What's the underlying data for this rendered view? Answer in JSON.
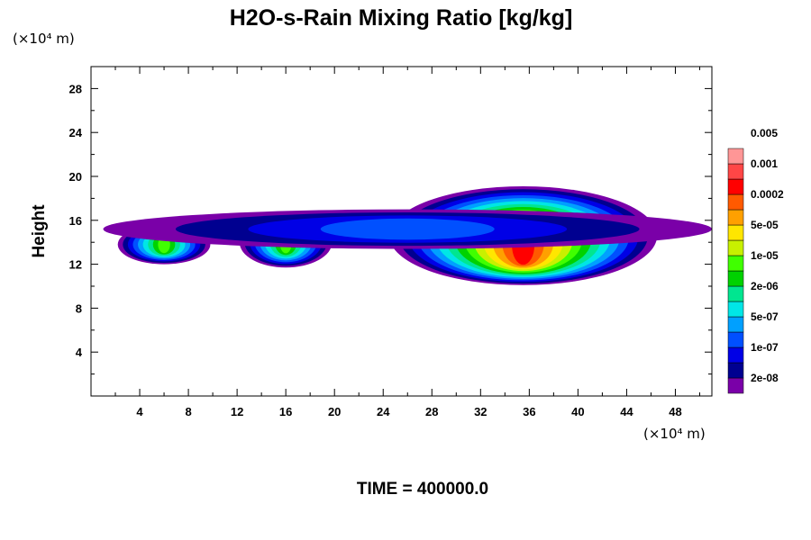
{
  "chart_data": {
    "type": "heatmap",
    "title": "H2O-s-Rain Mixing Ratio [kg/kg]",
    "ylabel": "Height",
    "x_unit": "(×10⁴ m)",
    "y_unit": "(×10⁴ m)",
    "footer": "TIME = 400000.0",
    "xlim": [
      0,
      51
    ],
    "ylim": [
      0,
      30
    ],
    "x_ticks": [
      "4",
      "8",
      "12",
      "16",
      "20",
      "24",
      "28",
      "32",
      "36",
      "40",
      "44",
      "48"
    ],
    "y_ticks": [
      "4",
      "8",
      "12",
      "16",
      "20",
      "24",
      "28"
    ],
    "colorbar": {
      "colors": [
        "#7a00a8",
        "#000090",
        "#0000e6",
        "#0050ff",
        "#00a0ff",
        "#00e6e6",
        "#00e690",
        "#00d200",
        "#40ff00",
        "#c8f000",
        "#ffe600",
        "#ffa000",
        "#ff5a00",
        "#ff0000",
        "#ff4646",
        "#ff9696"
      ],
      "labels": [
        "2e-08",
        "1e-07",
        "5e-07",
        "2e-06",
        "1e-05",
        "5e-05",
        "0.0002",
        "0.001",
        "0.005"
      ],
      "label_every": 2
    },
    "regions": [
      {
        "name": "main-cloud",
        "cx": 35.5,
        "cy": 14.6,
        "rx": 11.0,
        "ry": 4.5,
        "peak_level": 13
      },
      {
        "name": "mid-cell",
        "cx": 16.0,
        "cy": 14.0,
        "rx": 3.8,
        "ry": 2.3,
        "peak_level": 8
      },
      {
        "name": "left-cell",
        "cx": 6.0,
        "cy": 13.8,
        "rx": 3.8,
        "ry": 1.8,
        "peak_level": 8
      },
      {
        "name": "upper-layer",
        "cx": 26.0,
        "cy": 15.2,
        "rx": 25.0,
        "ry": 1.8,
        "peak_level": 3
      }
    ]
  }
}
